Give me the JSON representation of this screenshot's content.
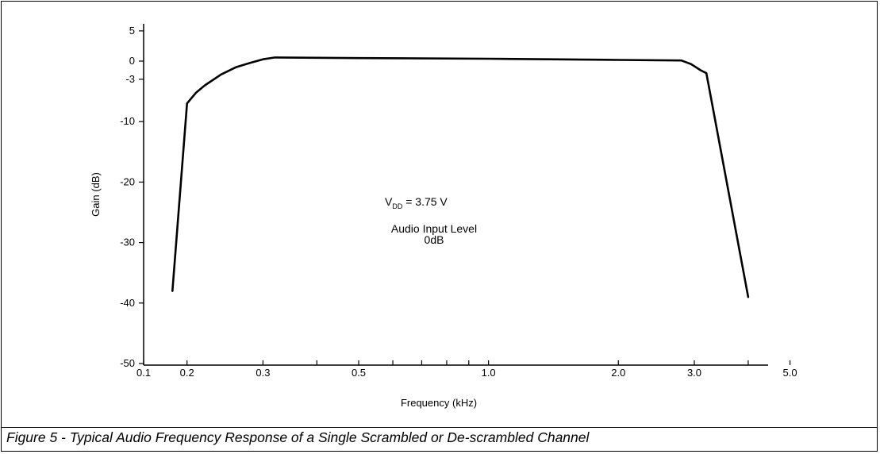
{
  "caption": "Figure 5  -  Typical Audio Frequency Response of a Single Scrambled or De-scrambled Channel",
  "chart_data": {
    "type": "line",
    "xlabel": "Frequency (kHz)",
    "ylabel": "Gain (dB)",
    "x_scale": "log",
    "xlim": [
      0.1,
      5.0
    ],
    "ylim": [
      -50,
      5
    ],
    "grid": false,
    "x_ticks": [
      {
        "value": 0.1,
        "label": "0.1"
      },
      {
        "value": 0.2,
        "label": "0.2"
      },
      {
        "value": 0.3,
        "label": "0.3"
      },
      {
        "value": 0.4,
        "label": ""
      },
      {
        "value": 0.5,
        "label": "0.5"
      },
      {
        "value": 0.6,
        "label": ""
      },
      {
        "value": 0.7,
        "label": ""
      },
      {
        "value": 0.8,
        "label": ""
      },
      {
        "value": 0.9,
        "label": ""
      },
      {
        "value": 1.0,
        "label": "1.0"
      },
      {
        "value": 2.0,
        "label": "2.0"
      },
      {
        "value": 3.0,
        "label": "3.0"
      },
      {
        "value": 4.0,
        "label": ""
      },
      {
        "value": 5.0,
        "label": "5.0"
      }
    ],
    "y_ticks": [
      {
        "value": 5,
        "label": "5"
      },
      {
        "value": 0,
        "label": "0"
      },
      {
        "value": -3,
        "label": "-3"
      },
      {
        "value": -10,
        "label": "-10"
      },
      {
        "value": -20,
        "label": "-20"
      },
      {
        "value": -30,
        "label": "-30"
      },
      {
        "value": -40,
        "label": "-40"
      },
      {
        "value": -50,
        "label": "-50"
      }
    ],
    "series": [
      {
        "x": [
          0.185,
          0.2,
          0.21,
          0.22,
          0.24,
          0.26,
          0.28,
          0.3,
          0.32,
          0.5,
          1.0,
          2.0,
          2.8,
          2.95,
          3.1,
          3.2,
          4.0
        ],
        "y": [
          -38,
          -7,
          -5.2,
          -4,
          -2.2,
          -1,
          -0.3,
          0.3,
          0.6,
          0.5,
          0.4,
          0.2,
          0.1,
          -0.5,
          -1.5,
          -2,
          -39
        ]
      }
    ],
    "annotations": {
      "vdd_main": "V",
      "vdd_sub": "DD",
      "vdd_value": " = 3.75  V",
      "line1": "Audio  Input  Level",
      "line2": "0dB"
    }
  }
}
